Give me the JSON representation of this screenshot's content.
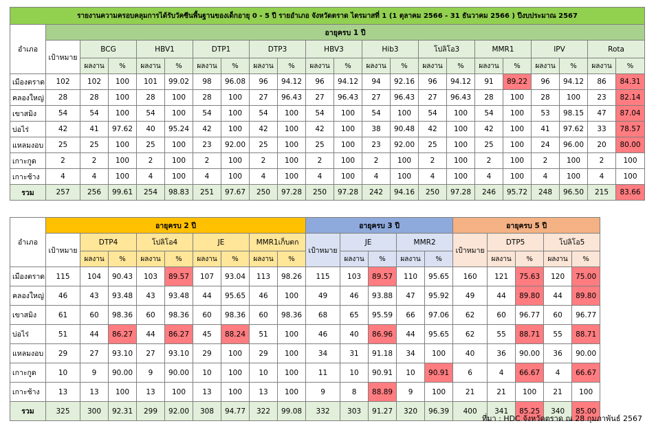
{
  "title": "รายงานความครอบคลุมการได้รับวัคซีนพื้นฐานของเด็กอายุ 0 - 5 ปี รายอำเภอ จังหวัดตราด ไตรมาสที่ 1 (1 ตุลาคม 2566 - 31 ธันวาคม 2566 ) ปีงบประมาณ 2567",
  "labels": {
    "amphoe": "อำเภอ",
    "target": "เป้าหมาย",
    "work": "ผลงาน",
    "pct": "%"
  },
  "table1": {
    "age_group": "อายุครบ 1 ปี",
    "vaccines": [
      "BCG",
      "HBV1",
      "DTP1",
      "DTP3",
      "HBV3",
      "Hib3",
      "โปลิโอ3",
      "MMR1",
      "IPV",
      "Rota"
    ],
    "rows": [
      {
        "district": "เมืองตราด",
        "target": "102",
        "cells": [
          "102",
          "100",
          "101",
          "99.02",
          "98",
          "96.08",
          "96",
          "94.12",
          "96",
          "94.12",
          "94",
          "92.16",
          "96",
          "94.12",
          "91",
          "89.22",
          "96",
          "94.12",
          "86",
          "84.31"
        ]
      },
      {
        "district": "คลองใหญ่",
        "target": "28",
        "cells": [
          "28",
          "100",
          "28",
          "100",
          "28",
          "100",
          "27",
          "96.43",
          "27",
          "96.43",
          "27",
          "96.43",
          "27",
          "96.43",
          "28",
          "100",
          "28",
          "100",
          "23",
          "82.14"
        ]
      },
      {
        "district": "เขาสมิง",
        "target": "54",
        "cells": [
          "54",
          "100",
          "54",
          "100",
          "54",
          "100",
          "54",
          "100",
          "54",
          "100",
          "54",
          "100",
          "54",
          "100",
          "54",
          "100",
          "53",
          "98.15",
          "47",
          "87.04"
        ]
      },
      {
        "district": "บ่อไร่",
        "target": "42",
        "cells": [
          "41",
          "97.62",
          "40",
          "95.24",
          "42",
          "100",
          "42",
          "100",
          "42",
          "100",
          "38",
          "90.48",
          "42",
          "100",
          "42",
          "100",
          "41",
          "97.62",
          "33",
          "78.57"
        ]
      },
      {
        "district": "แหลมงอบ",
        "target": "25",
        "cells": [
          "25",
          "100",
          "25",
          "100",
          "23",
          "92.00",
          "25",
          "100",
          "25",
          "100",
          "23",
          "92.00",
          "25",
          "100",
          "25",
          "100",
          "24",
          "96.00",
          "20",
          "80.00"
        ]
      },
      {
        "district": "เกาะกูด",
        "target": "2",
        "cells": [
          "2",
          "100",
          "2",
          "100",
          "2",
          "100",
          "2",
          "100",
          "2",
          "100",
          "2",
          "100",
          "2",
          "100",
          "2",
          "100",
          "2",
          "100",
          "2",
          "100"
        ]
      },
      {
        "district": "เกาะช้าง",
        "target": "4",
        "cells": [
          "4",
          "100",
          "4",
          "100",
          "4",
          "100",
          "4",
          "100",
          "4",
          "100",
          "4",
          "100",
          "4",
          "100",
          "4",
          "100",
          "4",
          "100",
          "4",
          "100"
        ]
      }
    ],
    "total": {
      "label": "รวม",
      "target": "257",
      "cells": [
        "256",
        "99.61",
        "254",
        "98.83",
        "251",
        "97.67",
        "250",
        "97.28",
        "250",
        "97.28",
        "242",
        "94.16",
        "250",
        "97.28",
        "246",
        "95.72",
        "248",
        "96.50",
        "215",
        "83.66"
      ]
    },
    "red_cells": [
      [
        0,
        15
      ],
      [
        0,
        19
      ],
      [
        1,
        19
      ],
      [
        2,
        19
      ],
      [
        3,
        19
      ],
      [
        4,
        19
      ],
      [
        7,
        19
      ]
    ]
  },
  "table2": {
    "age2": {
      "label": "อายุครบ 2 ปี",
      "vaccines": [
        "DTP4",
        "โปลิโอ4",
        "JE",
        "MMR1เก็บตก"
      ]
    },
    "age3": {
      "label": "อายุครบ 3 ปี",
      "vaccines": [
        "JE",
        "MMR2"
      ]
    },
    "age5": {
      "label": "อายุครบ 5 ปี",
      "vaccines": [
        "DTP5",
        "โปลิโอ5"
      ]
    },
    "rows": [
      {
        "district": "เมืองตราด",
        "t2": "115",
        "a2": [
          "104",
          "90.43",
          "103",
          "89.57",
          "107",
          "93.04",
          "113",
          "98.26"
        ],
        "t3": "115",
        "a3": [
          "103",
          "89.57",
          "110",
          "95.65"
        ],
        "t5": "160",
        "a5": [
          "121",
          "75.63",
          "120",
          "75.00"
        ]
      },
      {
        "district": "คลองใหญ่",
        "t2": "46",
        "a2": [
          "43",
          "93.48",
          "43",
          "93.48",
          "44",
          "95.65",
          "46",
          "100"
        ],
        "t3": "49",
        "a3": [
          "46",
          "93.88",
          "47",
          "95.92"
        ],
        "t5": "49",
        "a5": [
          "44",
          "89.80",
          "44",
          "89.80"
        ]
      },
      {
        "district": "เขาสมิง",
        "t2": "61",
        "a2": [
          "60",
          "98.36",
          "60",
          "98.36",
          "60",
          "98.36",
          "60",
          "98.36"
        ],
        "t3": "68",
        "a3": [
          "65",
          "95.59",
          "66",
          "97.06"
        ],
        "t5": "62",
        "a5": [
          "60",
          "96.77",
          "60",
          "96.77"
        ]
      },
      {
        "district": "บ่อไร่",
        "t2": "51",
        "a2": [
          "44",
          "86.27",
          "44",
          "86.27",
          "45",
          "88.24",
          "51",
          "100"
        ],
        "t3": "46",
        "a3": [
          "40",
          "86.96",
          "44",
          "95.65"
        ],
        "t5": "62",
        "a5": [
          "55",
          "88.71",
          "55",
          "88.71"
        ]
      },
      {
        "district": "แหลมงอบ",
        "t2": "29",
        "a2": [
          "27",
          "93.10",
          "27",
          "93.10",
          "29",
          "100",
          "29",
          "100"
        ],
        "t3": "34",
        "a3": [
          "31",
          "91.18",
          "34",
          "100"
        ],
        "t5": "40",
        "a5": [
          "36",
          "90.00",
          "36",
          "90.00"
        ]
      },
      {
        "district": "เกาะกูด",
        "t2": "10",
        "a2": [
          "9",
          "90.00",
          "9",
          "90.00",
          "10",
          "100",
          "10",
          "100"
        ],
        "t3": "11",
        "a3": [
          "10",
          "90.91",
          "10",
          "90.91"
        ],
        "t5": "6",
        "a5": [
          "4",
          "66.67",
          "4",
          "66.67"
        ]
      },
      {
        "district": "เกาะช้าง",
        "t2": "13",
        "a2": [
          "13",
          "100",
          "13",
          "100",
          "13",
          "100",
          "13",
          "100"
        ],
        "t3": "9",
        "a3": [
          "8",
          "88.89",
          "9",
          "100"
        ],
        "t5": "21",
        "a5": [
          "21",
          "100",
          "21",
          "100"
        ]
      }
    ],
    "total": {
      "label": "รวม",
      "t2": "325",
      "a2": [
        "300",
        "92.31",
        "299",
        "92.00",
        "308",
        "94.77",
        "322",
        "99.08"
      ],
      "t3": "332",
      "a3": [
        "303",
        "91.27",
        "320",
        "96.39"
      ],
      "t5": "400",
      "a5": [
        "341",
        "85.25",
        "340",
        "85.00"
      ]
    },
    "red_cells": [
      [
        "0",
        "a2",
        3
      ],
      [
        "0",
        "a3",
        1
      ],
      [
        "0",
        "a5",
        1
      ],
      [
        "0",
        "a5",
        3
      ],
      [
        "1",
        "a5",
        1
      ],
      [
        "1",
        "a5",
        3
      ],
      [
        "3",
        "a2",
        1
      ],
      [
        "3",
        "a2",
        3
      ],
      [
        "3",
        "a2",
        5
      ],
      [
        "3",
        "a3",
        1
      ],
      [
        "3",
        "a5",
        1
      ],
      [
        "3",
        "a5",
        3
      ],
      [
        "5",
        "a3",
        3
      ],
      [
        "5",
        "a5",
        1
      ],
      [
        "5",
        "a5",
        3
      ],
      [
        "6",
        "a3",
        1
      ],
      [
        "7",
        "a5",
        1
      ],
      [
        "7",
        "a5",
        3
      ]
    ]
  },
  "colors": {
    "title_bg": "#92d050",
    "age1_bg": "#a9d18e",
    "age2_bg": "#ffc000",
    "age3_bg": "#8ea9db",
    "age5_bg": "#f4b183",
    "low_coverage": "#ff7c80"
  },
  "source": "ที่มา : HDC จังหวัดตราด ณ 28 กุมภาพันธ์ 2567"
}
